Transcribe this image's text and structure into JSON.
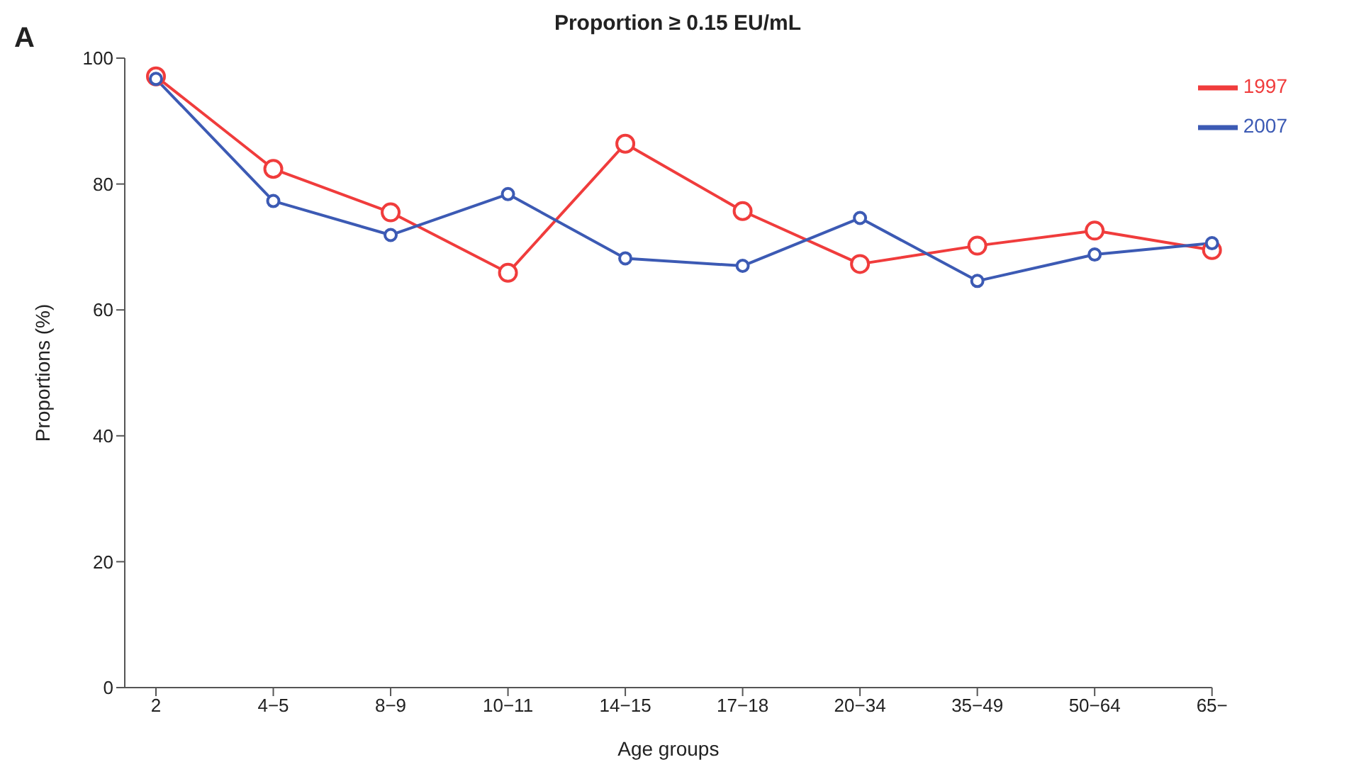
{
  "chart_data": {
    "type": "line",
    "title": "Proportion ≥ 0.15 EU/mL",
    "xlabel": "Age groups",
    "ylabel": "Proportions (%)",
    "annotations": [
      "A"
    ],
    "categories": [
      "2",
      "4−5",
      "8−9",
      "10−11",
      "14−15",
      "17−18",
      "20−34",
      "35−49",
      "50−64",
      "65−"
    ],
    "series": [
      {
        "name": "1997",
        "color": "#f03c3c",
        "values": [
          97.1,
          82.4,
          75.5,
          65.9,
          86.4,
          75.7,
          67.3,
          70.2,
          72.6,
          69.5
        ]
      },
      {
        "name": "2007",
        "color": "#3c5ab4",
        "values": [
          96.7,
          77.3,
          71.9,
          78.4,
          68.2,
          67.0,
          74.6,
          64.6,
          68.8,
          70.6
        ]
      }
    ],
    "ylim": [
      0,
      100
    ],
    "yticks": [
      0,
      20,
      40,
      60,
      80,
      100
    ],
    "grid": false,
    "legend": "top right",
    "marker": "circle",
    "line_style": "solid"
  }
}
